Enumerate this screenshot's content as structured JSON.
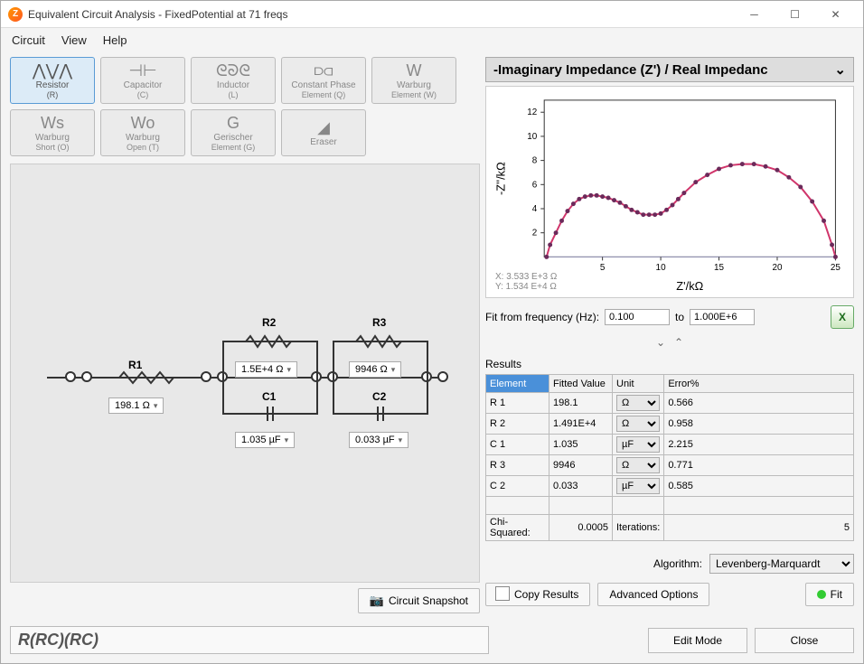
{
  "window": {
    "title": "Equivalent Circuit Analysis - FixedPotential at 71 freqs"
  },
  "menu": {
    "circuit": "Circuit",
    "view": "View",
    "help": "Help"
  },
  "tools": [
    {
      "icon": "⋀⋁⋀",
      "label": "Resistor",
      "sub": "(R)",
      "selected": true
    },
    {
      "icon": "⊣⊢",
      "label": "Capacitor",
      "sub": "(C)"
    },
    {
      "icon": "ᘓᘐᘓ",
      "label": "Inductor",
      "sub": "(L)"
    },
    {
      "icon": "⫐⫏",
      "label": "Constant Phase",
      "sub": "Element (Q)"
    },
    {
      "icon": "W",
      "label": "Warburg",
      "sub": "Element (W)"
    },
    {
      "icon": "Ws",
      "label": "Warburg",
      "sub": "Short (O)"
    },
    {
      "icon": "Wo",
      "label": "Warburg",
      "sub": "Open (T)"
    },
    {
      "icon": "G",
      "label": "Gerischer",
      "sub": "Element (G)"
    },
    {
      "icon": "◢",
      "label": "Eraser",
      "sub": ""
    }
  ],
  "circuit": {
    "R1": {
      "label": "R1",
      "value": "198.1 Ω"
    },
    "R2": {
      "label": "R2",
      "value": "1.5E+4 Ω"
    },
    "C1": {
      "label": "C1",
      "value": "1.035 µF"
    },
    "R3": {
      "label": "R3",
      "value": "9946 Ω"
    },
    "C2": {
      "label": "C2",
      "value": "0.033 µF"
    },
    "string": "R(RC)(RC)"
  },
  "chart": {
    "selector": "-Imaginary Impedance (Z') / Real Impedanc",
    "xlabel": "Z'/kΩ",
    "ylabel": "-Z''/kΩ",
    "coords_x": "X: 3.533 E+3 Ω",
    "coords_y": "Y: 1.534 E+4 Ω",
    "xlim": [
      0,
      25
    ],
    "ylim": [
      0,
      13
    ],
    "xticks": [
      5,
      10,
      15,
      20,
      25
    ],
    "yticks": [
      2,
      4,
      6,
      8,
      10,
      12
    ],
    "line_color": "#d0356b",
    "point_color": "#6b2a5a",
    "points": [
      [
        0.2,
        0
      ],
      [
        0.5,
        1.0
      ],
      [
        1,
        2.0
      ],
      [
        1.5,
        3.0
      ],
      [
        2,
        3.8
      ],
      [
        2.5,
        4.4
      ],
      [
        3,
        4.8
      ],
      [
        3.5,
        5.0
      ],
      [
        4,
        5.1
      ],
      [
        4.5,
        5.1
      ],
      [
        5,
        5.0
      ],
      [
        5.5,
        4.9
      ],
      [
        6,
        4.7
      ],
      [
        6.5,
        4.5
      ],
      [
        7,
        4.2
      ],
      [
        7.5,
        3.9
      ],
      [
        8,
        3.7
      ],
      [
        8.5,
        3.5
      ],
      [
        9,
        3.5
      ],
      [
        9.5,
        3.5
      ],
      [
        10,
        3.6
      ],
      [
        10.5,
        3.9
      ],
      [
        11,
        4.3
      ],
      [
        11.5,
        4.8
      ],
      [
        12,
        5.3
      ],
      [
        13,
        6.2
      ],
      [
        14,
        6.8
      ],
      [
        15,
        7.3
      ],
      [
        16,
        7.6
      ],
      [
        17,
        7.7
      ],
      [
        18,
        7.7
      ],
      [
        19,
        7.5
      ],
      [
        20,
        7.2
      ],
      [
        21,
        6.6
      ],
      [
        22,
        5.8
      ],
      [
        23,
        4.6
      ],
      [
        24,
        3.0
      ],
      [
        24.7,
        1.0
      ],
      [
        25,
        0
      ]
    ]
  },
  "freq": {
    "label": "Fit from frequency (Hz):",
    "from": "0.100",
    "to_label": "to",
    "to": "1.000E+6"
  },
  "results": {
    "label": "Results",
    "headers": [
      "Element",
      "Fitted Value",
      "Unit",
      "Error%"
    ],
    "rows": [
      {
        "el": "R 1",
        "val": "198.1",
        "unit": "Ω",
        "err": "0.566"
      },
      {
        "el": "R 2",
        "val": "1.491E+4",
        "unit": "Ω",
        "err": "0.958"
      },
      {
        "el": "C 1",
        "val": "1.035",
        "unit": "µF",
        "err": "2.215"
      },
      {
        "el": "R 3",
        "val": "9946",
        "unit": "Ω",
        "err": "0.771"
      },
      {
        "el": "C 2",
        "val": "0.033",
        "unit": "µF",
        "err": "0.585"
      }
    ],
    "chi_label": "Chi-Squared:",
    "chi_val": "0.0005",
    "iter_label": "Iterations:",
    "iter_val": "5"
  },
  "algo": {
    "label": "Algorithm:",
    "value": "Levenberg-Marquardt"
  },
  "buttons": {
    "snapshot": "Circuit Snapshot",
    "copy": "Copy Results",
    "advanced": "Advanced Options",
    "fit": "Fit",
    "edit": "Edit Mode",
    "close": "Close"
  }
}
